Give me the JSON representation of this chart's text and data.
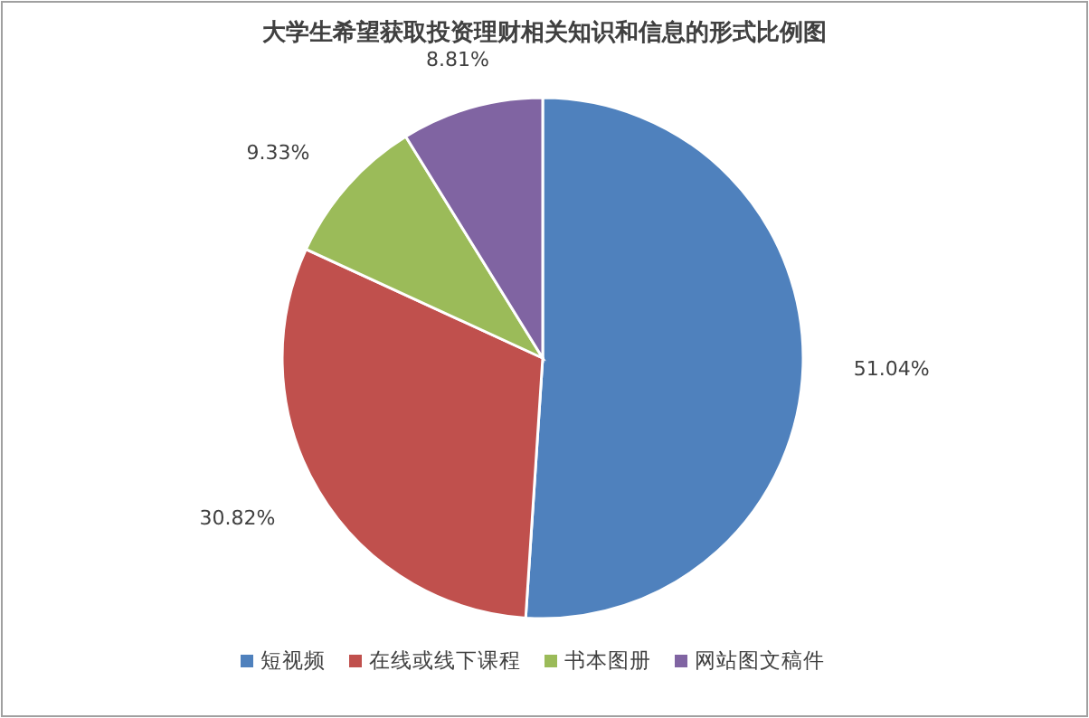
{
  "chart_data": {
    "type": "pie",
    "title": "大学生希望获取投资理财相关知识和信息的形式比例图",
    "categories": [
      "短视频",
      "在线或线下课程",
      "书本图册",
      "网站图文稿件"
    ],
    "values": [
      51.04,
      30.82,
      9.33,
      8.81
    ],
    "colors": [
      "#4f81bd",
      "#c0504d",
      "#9bbb59",
      "#8064a2"
    ],
    "value_labels": [
      "51.04%",
      "30.82%",
      "9.33%",
      "8.81%"
    ],
    "legend": "bottom"
  }
}
